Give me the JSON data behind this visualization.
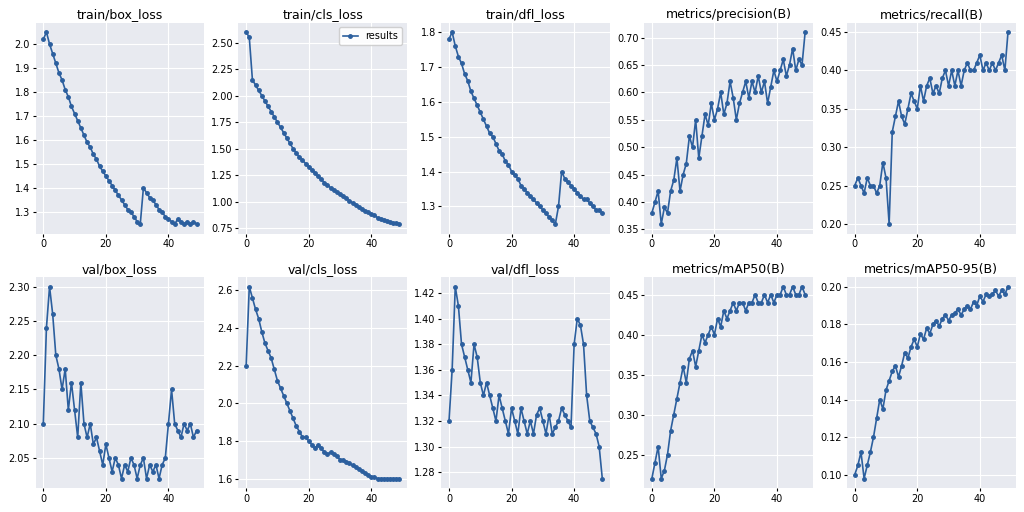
{
  "titles": [
    "train/box_loss",
    "train/cls_loss",
    "train/dfl_loss",
    "metrics/precision(B)",
    "metrics/recall(B)",
    "val/box_loss",
    "val/cls_loss",
    "val/dfl_loss",
    "metrics/mAP50(B)",
    "metrics/mAP50-95(B)"
  ],
  "line_color": "#2c5f9e",
  "bg_color": "#e8eaf0",
  "fig_bg": "#ffffff",
  "legend_label": "results",
  "marker": "o",
  "markersize": 2.5,
  "linewidth": 1.2,
  "epochs": 50,
  "train_box_loss": [
    2.02,
    2.05,
    2.0,
    1.96,
    1.92,
    1.88,
    1.85,
    1.81,
    1.78,
    1.74,
    1.71,
    1.68,
    1.65,
    1.62,
    1.59,
    1.57,
    1.54,
    1.52,
    1.49,
    1.47,
    1.45,
    1.43,
    1.41,
    1.39,
    1.37,
    1.35,
    1.33,
    1.31,
    1.3,
    1.28,
    1.26,
    1.25,
    1.4,
    1.38,
    1.36,
    1.35,
    1.33,
    1.31,
    1.3,
    1.28,
    1.27,
    1.26,
    1.25,
    1.27,
    1.26,
    1.25,
    1.26,
    1.25,
    1.26,
    1.25
  ],
  "train_cls_loss": [
    2.6,
    2.55,
    2.15,
    2.1,
    2.05,
    2.0,
    1.95,
    1.9,
    1.85,
    1.8,
    1.75,
    1.7,
    1.65,
    1.6,
    1.55,
    1.5,
    1.46,
    1.42,
    1.39,
    1.36,
    1.33,
    1.3,
    1.27,
    1.24,
    1.21,
    1.18,
    1.16,
    1.13,
    1.11,
    1.09,
    1.07,
    1.05,
    1.03,
    1.01,
    0.99,
    0.97,
    0.95,
    0.93,
    0.91,
    0.9,
    0.88,
    0.87,
    0.85,
    0.84,
    0.83,
    0.82,
    0.81,
    0.8,
    0.8,
    0.79
  ],
  "train_dfl_loss": [
    1.78,
    1.8,
    1.76,
    1.73,
    1.71,
    1.68,
    1.66,
    1.63,
    1.61,
    1.59,
    1.57,
    1.55,
    1.53,
    1.51,
    1.5,
    1.48,
    1.46,
    1.45,
    1.43,
    1.42,
    1.4,
    1.39,
    1.38,
    1.36,
    1.35,
    1.34,
    1.33,
    1.32,
    1.31,
    1.3,
    1.29,
    1.28,
    1.27,
    1.26,
    1.25,
    1.3,
    1.4,
    1.38,
    1.37,
    1.36,
    1.35,
    1.34,
    1.33,
    1.32,
    1.32,
    1.31,
    1.3,
    1.29,
    1.29,
    1.28
  ],
  "metrics_precision": [
    0.38,
    0.4,
    0.42,
    0.36,
    0.39,
    0.38,
    0.42,
    0.44,
    0.48,
    0.42,
    0.45,
    0.47,
    0.52,
    0.5,
    0.55,
    0.48,
    0.52,
    0.56,
    0.54,
    0.58,
    0.55,
    0.57,
    0.6,
    0.56,
    0.58,
    0.62,
    0.59,
    0.55,
    0.58,
    0.6,
    0.62,
    0.59,
    0.62,
    0.6,
    0.63,
    0.6,
    0.62,
    0.58,
    0.61,
    0.64,
    0.62,
    0.64,
    0.66,
    0.63,
    0.65,
    0.68,
    0.64,
    0.66,
    0.65,
    0.71
  ],
  "metrics_recall": [
    0.25,
    0.26,
    0.25,
    0.24,
    0.26,
    0.25,
    0.25,
    0.24,
    0.25,
    0.28,
    0.26,
    0.2,
    0.32,
    0.34,
    0.36,
    0.34,
    0.33,
    0.35,
    0.37,
    0.36,
    0.35,
    0.38,
    0.36,
    0.38,
    0.39,
    0.37,
    0.38,
    0.37,
    0.39,
    0.4,
    0.38,
    0.4,
    0.38,
    0.4,
    0.38,
    0.4,
    0.41,
    0.4,
    0.4,
    0.41,
    0.42,
    0.4,
    0.41,
    0.4,
    0.41,
    0.4,
    0.41,
    0.42,
    0.4,
    0.45
  ],
  "val_box_loss": [
    2.1,
    2.24,
    2.3,
    2.26,
    2.2,
    2.18,
    2.15,
    2.18,
    2.12,
    2.16,
    2.12,
    2.08,
    2.16,
    2.1,
    2.08,
    2.1,
    2.07,
    2.08,
    2.06,
    2.04,
    2.07,
    2.05,
    2.03,
    2.05,
    2.04,
    2.02,
    2.04,
    2.03,
    2.05,
    2.04,
    2.02,
    2.04,
    2.05,
    2.02,
    2.04,
    2.03,
    2.04,
    2.02,
    2.04,
    2.05,
    2.1,
    2.15,
    2.1,
    2.09,
    2.08,
    2.1,
    2.09,
    2.1,
    2.08,
    2.09
  ],
  "val_cls_loss": [
    2.2,
    2.62,
    2.56,
    2.5,
    2.45,
    2.38,
    2.32,
    2.28,
    2.24,
    2.18,
    2.12,
    2.08,
    2.04,
    2.0,
    1.96,
    1.92,
    1.88,
    1.85,
    1.82,
    1.82,
    1.8,
    1.78,
    1.76,
    1.78,
    1.76,
    1.74,
    1.73,
    1.74,
    1.73,
    1.72,
    1.7,
    1.7,
    1.69,
    1.68,
    1.67,
    1.66,
    1.65,
    1.64,
    1.63,
    1.62,
    1.61,
    1.61,
    1.6,
    1.6,
    1.6,
    1.6,
    1.6,
    1.6,
    1.6,
    1.6
  ],
  "val_dfl_loss": [
    1.32,
    1.36,
    1.425,
    1.41,
    1.38,
    1.37,
    1.36,
    1.35,
    1.38,
    1.37,
    1.35,
    1.34,
    1.35,
    1.34,
    1.33,
    1.32,
    1.34,
    1.33,
    1.32,
    1.31,
    1.33,
    1.32,
    1.31,
    1.33,
    1.32,
    1.31,
    1.32,
    1.31,
    1.325,
    1.33,
    1.32,
    1.31,
    1.325,
    1.31,
    1.315,
    1.32,
    1.33,
    1.325,
    1.32,
    1.315,
    1.38,
    1.4,
    1.395,
    1.38,
    1.34,
    1.32,
    1.315,
    1.31,
    1.3,
    1.275
  ],
  "metrics_map50": [
    0.22,
    0.24,
    0.26,
    0.22,
    0.23,
    0.25,
    0.28,
    0.3,
    0.32,
    0.34,
    0.36,
    0.34,
    0.37,
    0.38,
    0.36,
    0.38,
    0.4,
    0.39,
    0.4,
    0.41,
    0.4,
    0.42,
    0.41,
    0.43,
    0.42,
    0.43,
    0.44,
    0.43,
    0.44,
    0.44,
    0.43,
    0.44,
    0.44,
    0.45,
    0.44,
    0.44,
    0.45,
    0.44,
    0.45,
    0.44,
    0.45,
    0.45,
    0.46,
    0.45,
    0.45,
    0.46,
    0.45,
    0.45,
    0.46,
    0.45
  ],
  "metrics_map50_95": [
    0.1,
    0.105,
    0.112,
    0.098,
    0.105,
    0.112,
    0.12,
    0.13,
    0.14,
    0.135,
    0.145,
    0.15,
    0.155,
    0.158,
    0.152,
    0.158,
    0.165,
    0.162,
    0.168,
    0.172,
    0.168,
    0.175,
    0.172,
    0.178,
    0.175,
    0.18,
    0.182,
    0.179,
    0.183,
    0.185,
    0.182,
    0.185,
    0.186,
    0.188,
    0.185,
    0.188,
    0.19,
    0.188,
    0.192,
    0.19,
    0.195,
    0.192,
    0.196,
    0.195,
    0.196,
    0.198,
    0.195,
    0.198,
    0.196,
    0.2
  ]
}
